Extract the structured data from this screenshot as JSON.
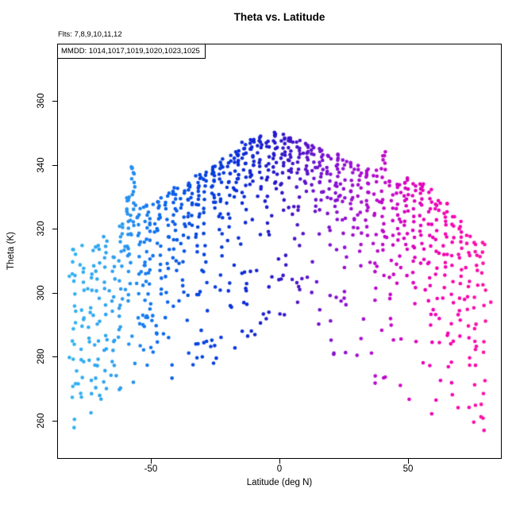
{
  "chart_data": {
    "type": "scatter",
    "title": "Theta vs. Latitude",
    "annotations": {
      "flights": "Flts: 7,8,9,10,11,12",
      "mmdd": "MMDD: 1014,1017,1019,1020,1023,1025"
    },
    "xlabel": "Latitude (deg N)",
    "ylabel": "Theta (K)",
    "xlim": [
      -86.4,
      86.4
    ],
    "ylim": [
      248,
      378
    ],
    "xticks": [
      -50,
      0,
      50
    ],
    "yticks": [
      260,
      280,
      300,
      320,
      340,
      360
    ],
    "grid": false,
    "legend_position": "none",
    "point_radius": 2.3,
    "seed": 20231025,
    "color_by": "latitude",
    "color_stops": [
      [
        -86,
        "#33B8F0"
      ],
      [
        -62,
        "#2D9CEF"
      ],
      [
        -48,
        "#0D6EF0"
      ],
      [
        -32,
        "#0646E0"
      ],
      [
        -16,
        "#0A2ED8"
      ],
      [
        -2,
        "#2418CC"
      ],
      [
        6,
        "#4A14C8"
      ],
      [
        16,
        "#7612D0"
      ],
      [
        28,
        "#9C10D0"
      ],
      [
        42,
        "#C408C8"
      ],
      [
        56,
        "#E800B8"
      ],
      [
        70,
        "#FA06AC"
      ],
      [
        86,
        "#FF18A2"
      ]
    ],
    "profiles": [
      [
        -80,
        314,
        258,
        16
      ],
      [
        -77,
        310,
        262,
        12
      ],
      [
        -74,
        306,
        260,
        12
      ],
      [
        -71,
        316,
        264,
        14
      ],
      [
        -68,
        318,
        268,
        14
      ],
      [
        -65,
        312,
        270,
        12
      ],
      [
        -62,
        322,
        284,
        16
      ],
      [
        -59,
        330,
        296,
        18
      ],
      [
        -57,
        340,
        318,
        16
      ],
      [
        -55,
        326,
        282,
        14
      ],
      [
        -52,
        328,
        286,
        16
      ],
      [
        -50,
        324,
        276,
        14
      ],
      [
        -47,
        330,
        298,
        18
      ],
      [
        -44,
        331,
        290,
        16
      ],
      [
        -41,
        333,
        306,
        18
      ],
      [
        -38,
        332,
        296,
        14
      ],
      [
        -35,
        334,
        320,
        16
      ],
      [
        -32,
        337,
        312,
        18
      ],
      [
        -29,
        338,
        300,
        16
      ],
      [
        -26,
        340,
        326,
        18
      ],
      [
        -23,
        342,
        310,
        16
      ],
      [
        -20,
        343,
        316,
        14
      ],
      [
        -17,
        345,
        330,
        18
      ],
      [
        -14,
        347,
        322,
        16
      ],
      [
        -11,
        348,
        334,
        18
      ],
      [
        -8,
        349,
        330,
        16
      ],
      [
        -5,
        348,
        318,
        14
      ],
      [
        -2,
        350,
        332,
        18
      ],
      [
        1,
        350,
        328,
        16
      ],
      [
        4,
        349,
        336,
        18
      ],
      [
        7,
        348,
        320,
        14
      ],
      [
        10,
        347,
        332,
        16
      ],
      [
        13,
        346,
        324,
        14
      ],
      [
        16,
        345,
        328,
        16
      ],
      [
        19,
        344,
        314,
        14
      ],
      [
        22,
        343,
        324,
        16
      ],
      [
        25,
        342,
        304,
        14
      ],
      [
        28,
        341,
        318,
        14
      ],
      [
        31,
        340,
        308,
        16
      ],
      [
        34,
        339,
        318,
        16
      ],
      [
        37,
        338,
        298,
        14
      ],
      [
        40,
        344,
        312,
        18
      ],
      [
        43,
        336,
        288,
        14
      ],
      [
        46,
        335,
        302,
        16
      ],
      [
        49,
        336,
        312,
        18
      ],
      [
        52,
        334,
        296,
        16
      ],
      [
        55,
        335,
        308,
        18
      ],
      [
        58,
        332,
        292,
        16
      ],
      [
        61,
        330,
        282,
        14
      ],
      [
        64,
        328,
        298,
        16
      ],
      [
        67,
        325,
        278,
        14
      ],
      [
        70,
        322,
        288,
        16
      ],
      [
        73,
        318,
        274,
        14
      ],
      [
        76,
        315,
        262,
        14
      ],
      [
        79,
        316,
        258,
        14
      ]
    ],
    "envelope": [
      [
        -82,
        316,
        256
      ],
      [
        -70,
        320,
        258
      ],
      [
        -60,
        332,
        268
      ],
      [
        -50,
        328,
        272
      ],
      [
        -40,
        334,
        272
      ],
      [
        -30,
        339,
        276
      ],
      [
        -20,
        343,
        280
      ],
      [
        -10,
        347,
        286
      ],
      [
        0,
        350,
        288
      ],
      [
        10,
        347,
        284
      ],
      [
        20,
        344,
        280
      ],
      [
        30,
        341,
        276
      ],
      [
        40,
        340,
        270
      ],
      [
        50,
        336,
        266
      ],
      [
        60,
        331,
        260
      ],
      [
        70,
        323,
        257
      ],
      [
        80,
        317,
        255
      ]
    ],
    "sparse_n": 260
  }
}
